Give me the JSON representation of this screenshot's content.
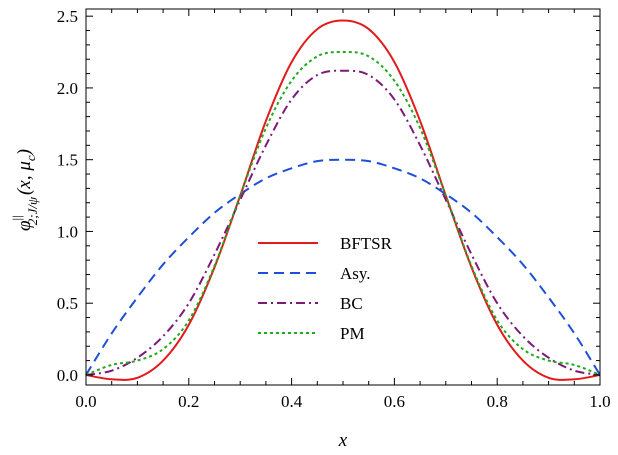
{
  "chart_data": {
    "type": "line",
    "title": "",
    "xlabel": "x",
    "ylabel": "φ^∥_{2;J/ψ}(x, μ_c)",
    "ylabel_parts": {
      "base": "φ",
      "sup": "||",
      "sub": "2;J/ψ",
      "args": "(x, μ",
      "args_sub": "c",
      "args_end": ")"
    },
    "xlim": [
      0.0,
      1.0
    ],
    "ylim": [
      -0.07,
      2.55
    ],
    "x_ticks": [
      "0.0",
      "0.2",
      "0.4",
      "0.6",
      "0.8",
      "1.0"
    ],
    "y_ticks": [
      "0.0",
      "0.5",
      "1.0",
      "1.5",
      "2.0",
      "2.5"
    ],
    "grid": false,
    "legend_position": "center",
    "x": [
      0.0,
      0.05,
      0.1,
      0.15,
      0.2,
      0.25,
      0.3,
      0.35,
      0.4,
      0.45,
      0.5,
      0.55,
      0.6,
      0.65,
      0.7,
      0.75,
      0.8,
      0.85,
      0.9,
      0.95,
      1.0
    ],
    "series": [
      {
        "name": "BFTSR",
        "color": "#e31a1c",
        "dash": "solid",
        "values": [
          0.0,
          -0.03,
          -0.02,
          0.1,
          0.35,
          0.75,
          1.25,
          1.77,
          2.18,
          2.41,
          2.47,
          2.41,
          2.18,
          1.77,
          1.25,
          0.75,
          0.35,
          0.1,
          -0.02,
          -0.03,
          0.0
        ]
      },
      {
        "name": "Asy.",
        "color": "#1f4fd8",
        "dash": "long-dash",
        "values": [
          0.0,
          0.29,
          0.54,
          0.77,
          0.96,
          1.13,
          1.26,
          1.37,
          1.44,
          1.49,
          1.5,
          1.49,
          1.44,
          1.37,
          1.26,
          1.13,
          0.96,
          0.77,
          0.54,
          0.29,
          0.0
        ]
      },
      {
        "name": "BC",
        "color": "#7b1a7b",
        "dash": "dash-dot",
        "values": [
          0.0,
          0.03,
          0.12,
          0.27,
          0.5,
          0.84,
          1.22,
          1.6,
          1.92,
          2.09,
          2.12,
          2.09,
          1.92,
          1.6,
          1.22,
          0.84,
          0.5,
          0.27,
          0.12,
          0.03,
          0.0
        ]
      },
      {
        "name": "PM",
        "color": "#1faa1f",
        "dash": "dotted",
        "values": [
          0.0,
          0.07,
          0.1,
          0.18,
          0.38,
          0.76,
          1.25,
          1.72,
          2.05,
          2.22,
          2.25,
          2.22,
          2.05,
          1.72,
          1.25,
          0.76,
          0.38,
          0.18,
          0.1,
          0.07,
          0.0
        ]
      }
    ]
  }
}
